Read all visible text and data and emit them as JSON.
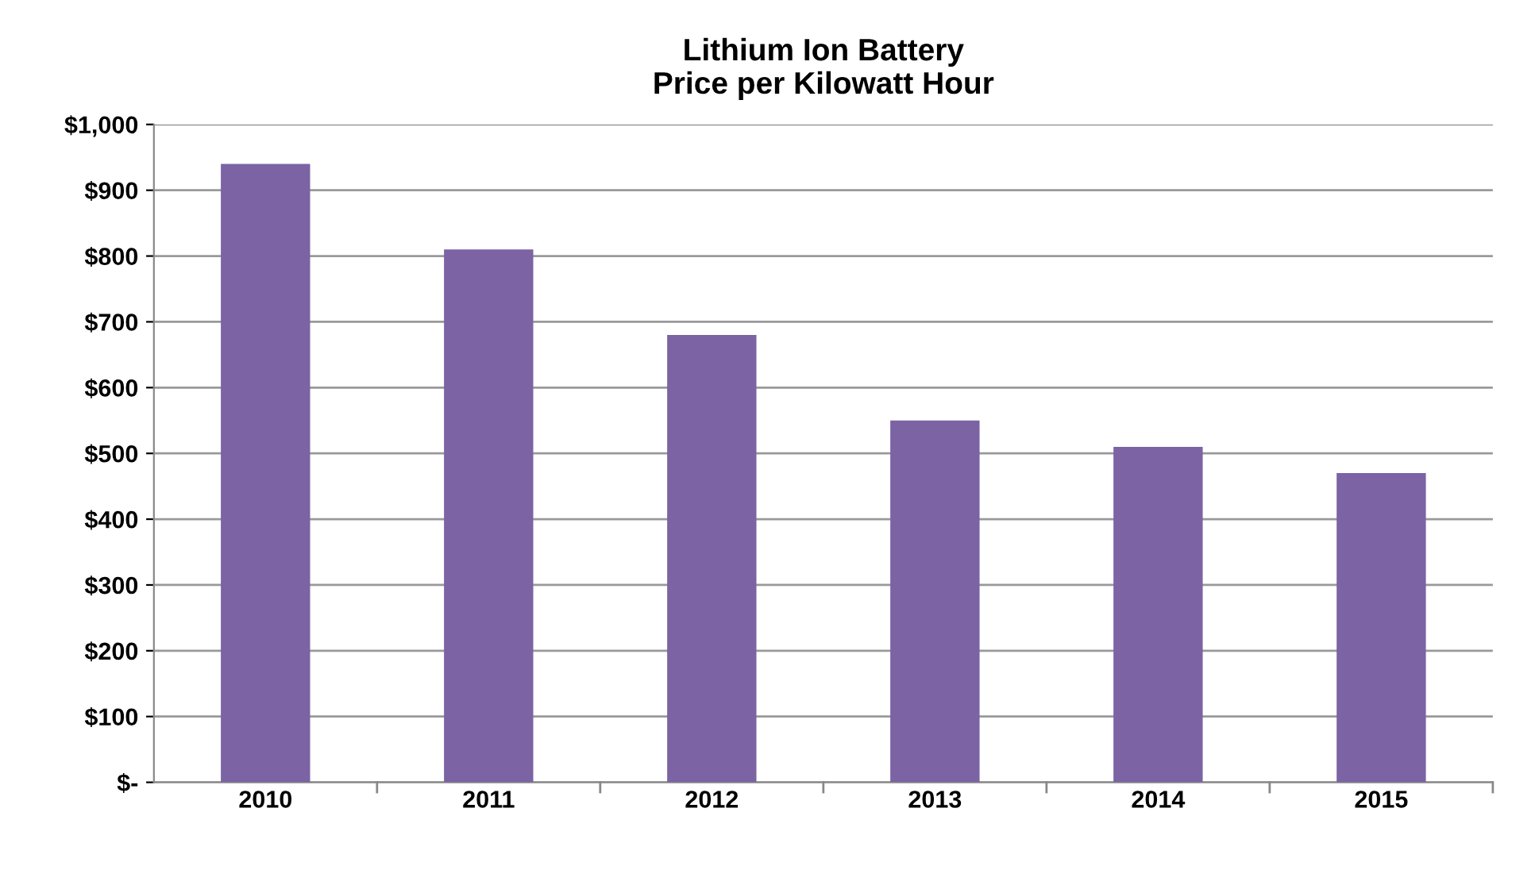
{
  "chart_data": {
    "type": "bar",
    "title": "Lithium Ion Battery\nPrice per Kilowatt Hour",
    "categories": [
      "2010",
      "2011",
      "2012",
      "2013",
      "2014",
      "2015"
    ],
    "values": [
      940,
      810,
      680,
      550,
      510,
      470
    ],
    "color": "#7b63a4",
    "ylim": [
      0,
      1000
    ],
    "yticks": [
      {
        "value": 0,
        "label": "$-"
      },
      {
        "value": 100,
        "label": "$100"
      },
      {
        "value": 200,
        "label": "$200"
      },
      {
        "value": 300,
        "label": "$300"
      },
      {
        "value": 400,
        "label": "$400"
      },
      {
        "value": 500,
        "label": "$500"
      },
      {
        "value": 600,
        "label": "$600"
      },
      {
        "value": 700,
        "label": "$700"
      },
      {
        "value": 800,
        "label": "$800"
      },
      {
        "value": 900,
        "label": "$900"
      },
      {
        "value": 1000,
        "label": "$1,000"
      }
    ],
    "grid": "y"
  }
}
